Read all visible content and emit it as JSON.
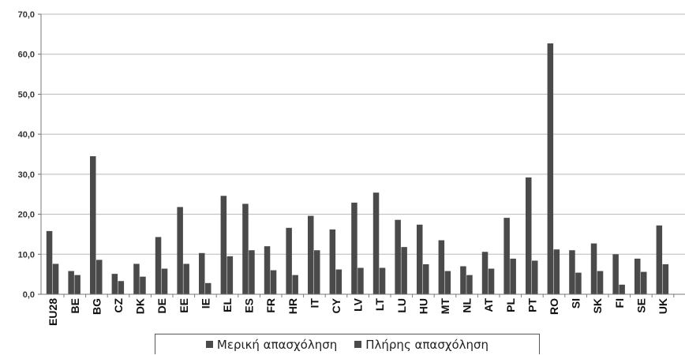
{
  "chart_data": {
    "type": "bar",
    "categories": [
      "EU28",
      "BE",
      "BG",
      "CZ",
      "DK",
      "DE",
      "EE",
      "IE",
      "EL",
      "ES",
      "FR",
      "HR",
      "IT",
      "CY",
      "LV",
      "LT",
      "LU",
      "HU",
      "MT",
      "NL",
      "AT",
      "PL",
      "PT",
      "RO",
      "SI",
      "SK",
      "FI",
      "SE",
      "UK"
    ],
    "series": [
      {
        "name": "Μερική απασχόληση",
        "color": "#4a4a4a",
        "values": [
          15.8,
          5.8,
          34.5,
          5.1,
          7.6,
          14.3,
          21.8,
          10.3,
          24.6,
          22.6,
          12.0,
          16.6,
          19.6,
          16.2,
          22.9,
          25.4,
          18.6,
          17.4,
          13.5,
          7.0,
          10.6,
          19.1,
          29.2,
          62.7,
          11.0,
          12.7,
          10.0,
          8.9,
          17.2
        ]
      },
      {
        "name": "Πλήρης απασχόληση",
        "color": "#4a4a4a",
        "values": [
          7.6,
          4.8,
          8.6,
          3.3,
          4.4,
          6.4,
          7.6,
          2.8,
          9.5,
          11.0,
          6.0,
          4.8,
          11.0,
          6.2,
          6.6,
          6.6,
          11.8,
          7.5,
          5.8,
          4.8,
          6.4,
          8.9,
          8.4,
          11.2,
          5.4,
          5.8,
          2.4,
          5.6,
          7.5
        ]
      }
    ],
    "ylim": [
      0,
      70
    ],
    "yticks": [
      "0,0",
      "10,0",
      "20,0",
      "30,0",
      "40,0",
      "50,0",
      "60,0",
      "70,0"
    ],
    "title": "",
    "xlabel": "",
    "ylabel": "",
    "grid": true,
    "legend_position": "bottom"
  }
}
